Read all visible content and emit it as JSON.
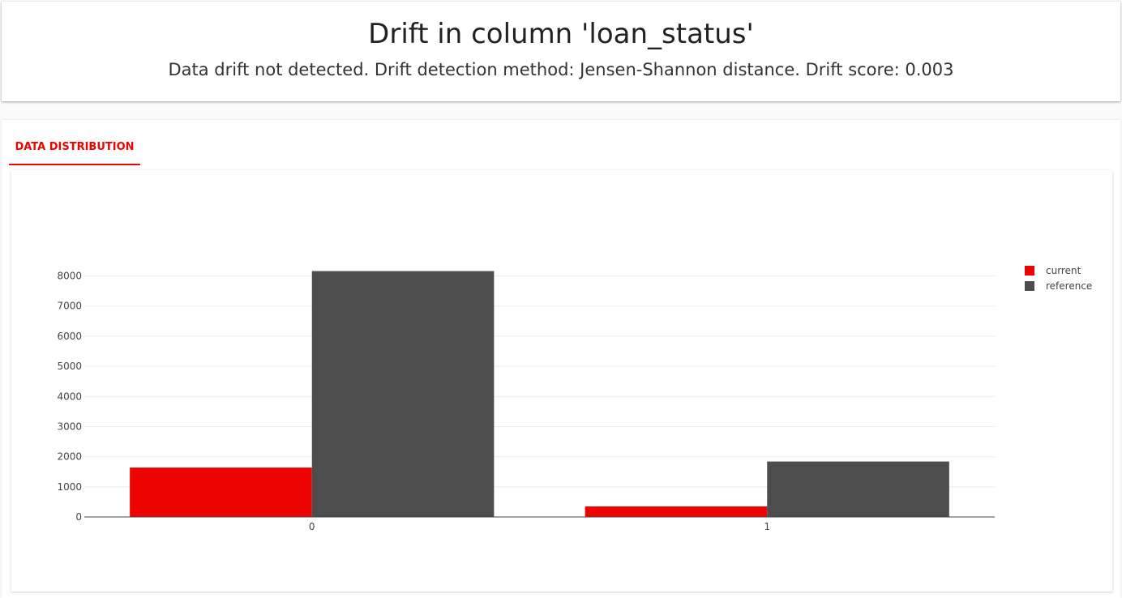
{
  "header": {
    "title": "Drift in column 'loan_status'",
    "subtitle": "Data drift not detected. Drift detection method: Jensen-Shannon distance. Drift score: 0.003"
  },
  "tabs": [
    {
      "label": "DATA DISTRIBUTION",
      "active": true
    }
  ],
  "colors": {
    "accent": "#ed0400",
    "current": "#ed0400",
    "reference": "#4d4d4d"
  },
  "chart_data": {
    "type": "bar",
    "categories": [
      "0",
      "1"
    ],
    "series": [
      {
        "name": "current",
        "values": [
          1640,
          350
        ]
      },
      {
        "name": "reference",
        "values": [
          8160,
          1840
        ]
      }
    ],
    "ylim": [
      0,
      8000
    ],
    "yticks": [
      0,
      1000,
      2000,
      3000,
      4000,
      5000,
      6000,
      7000,
      8000
    ],
    "grid": true,
    "legend": "top-right"
  }
}
